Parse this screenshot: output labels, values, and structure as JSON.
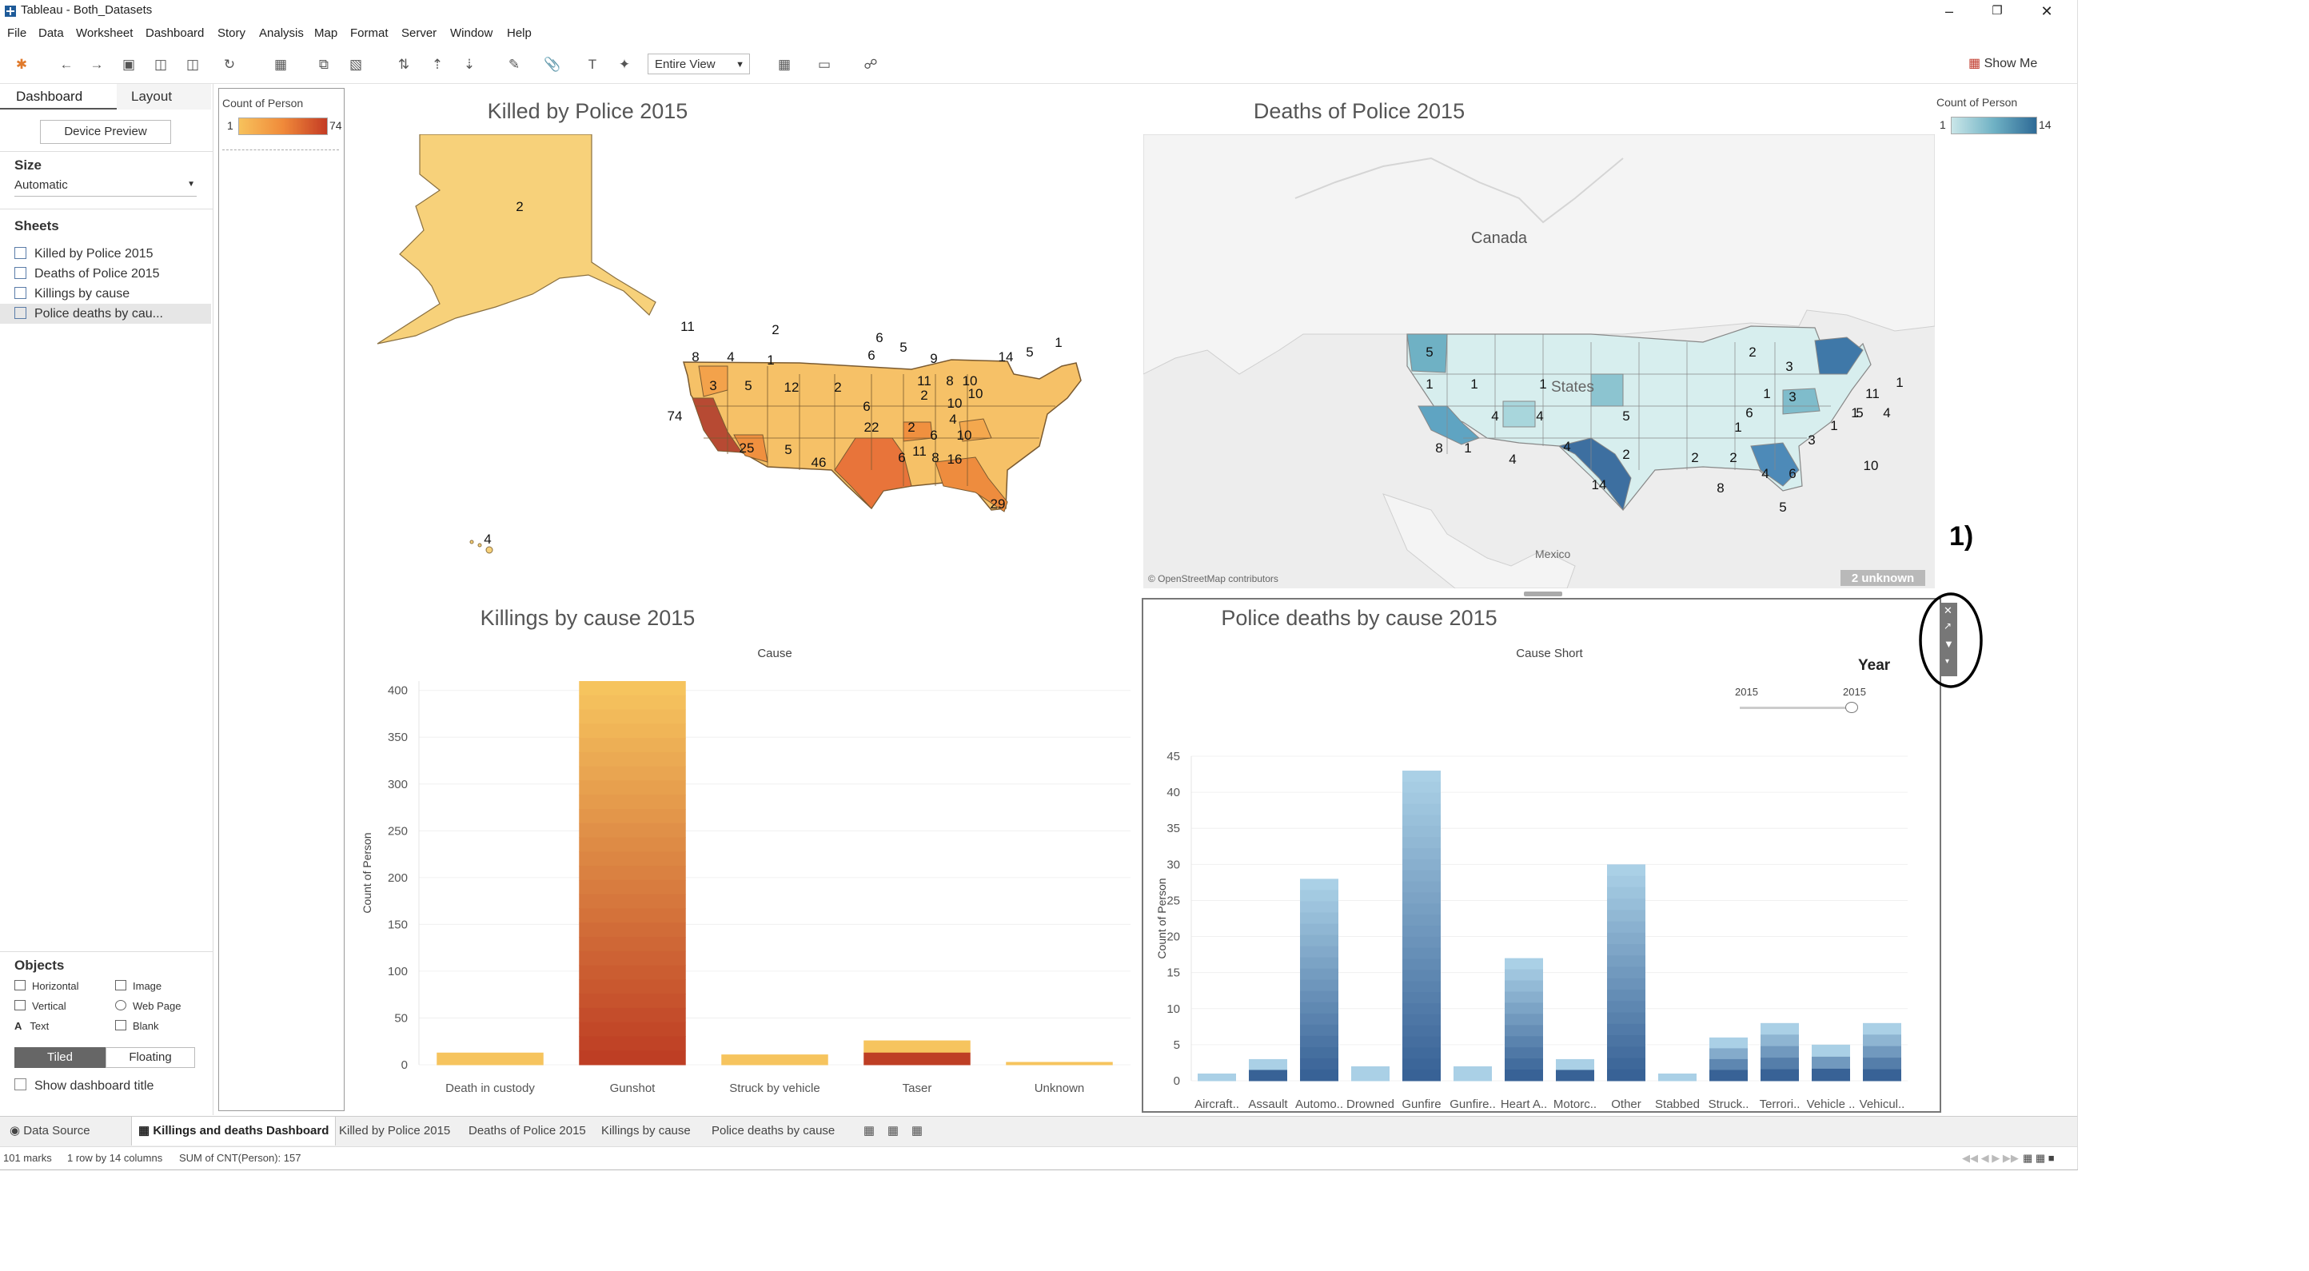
{
  "window": {
    "title": "Tableau - Both_Datasets"
  },
  "menu": [
    "File",
    "Data",
    "Worksheet",
    "Dashboard",
    "Story",
    "Analysis",
    "Map",
    "Format",
    "Server",
    "Window",
    "Help"
  ],
  "toolbar": {
    "fit": "Entire View",
    "show_me": "Show Me"
  },
  "left_pane": {
    "tabs": {
      "dashboard": "Dashboard",
      "layout": "Layout"
    },
    "device_preview": "Device Preview",
    "size_title": "Size",
    "size_value": "Automatic",
    "sheets_title": "Sheets",
    "sheets": [
      "Killed by Police 2015",
      "Deaths of Police 2015",
      "Killings by cause",
      "Police deaths by cau..."
    ],
    "objects_title": "Objects",
    "objects": [
      "Horizontal",
      "Image",
      "Vertical",
      "Web Page",
      "Text",
      "Blank"
    ],
    "tiled": "Tiled",
    "floating": "Floating",
    "show_title": "Show dashboard title"
  },
  "legend_orange": {
    "title": "Count of Person",
    "min": "1",
    "max": "74"
  },
  "legend_blue": {
    "title": "Count of Person",
    "min": "1",
    "max": "14"
  },
  "map_killed": {
    "title": "Killed by Police 2015",
    "labels": [
      "2",
      "11",
      "2",
      "6",
      "8",
      "4",
      "1",
      "5",
      "9",
      "6",
      "14",
      "5",
      "1",
      "2",
      "11",
      "8",
      "10",
      "3",
      "5",
      "12",
      "10",
      "2",
      "10",
      "6",
      "4",
      "74",
      "22",
      "2",
      "6",
      "10",
      "25",
      "5",
      "46",
      "11",
      "6",
      "8",
      "16",
      "29",
      "4"
    ]
  },
  "map_deaths": {
    "title": "Deaths of Police 2015",
    "labels": [
      "5",
      "2",
      "3",
      "1",
      "1",
      "1",
      "1",
      "3",
      "11",
      "1",
      "4",
      "4",
      "5",
      "6",
      "1",
      "8",
      "1",
      "4",
      "1",
      "5",
      "4",
      "2",
      "2",
      "2",
      "4",
      "10",
      "14",
      "6",
      "4",
      "8",
      "5",
      "1",
      "3"
    ],
    "place_canada": "Canada",
    "place_states": "States",
    "place_mexico": "Mexico",
    "attribution": "© OpenStreetMap contributors",
    "unknown": "2 unknown"
  },
  "annotation": "1)",
  "chart_data": [
    {
      "type": "bar",
      "title": "Killings by cause 2015",
      "header": "Cause",
      "ylabel": "Count of Person",
      "ylim": [
        0,
        410
      ],
      "yticks": [
        0,
        50,
        100,
        150,
        200,
        250,
        300,
        350,
        400
      ],
      "categories": [
        "Death in custody",
        "Gunshot",
        "Struck by vehicle",
        "Taser",
        "Unknown"
      ],
      "values": [
        13,
        410,
        11,
        26,
        3
      ]
    },
    {
      "type": "bar",
      "title": "Police deaths by cause 2015",
      "header": "Cause Short",
      "ylabel": "Count of Person",
      "ylim": [
        0,
        45
      ],
      "yticks": [
        0,
        5,
        10,
        15,
        20,
        25,
        30,
        35,
        40,
        45
      ],
      "categories": [
        "Aircraft..",
        "Assault",
        "Automo..",
        "Drowned",
        "Gunfire",
        "Gunfire..",
        "Heart A..",
        "Motorc..",
        "Other",
        "Stabbed",
        "Struck..",
        "Terrori..",
        "Vehicle ..",
        "Vehicul.."
      ],
      "values": [
        1,
        3,
        28,
        2,
        43,
        2,
        17,
        3,
        30,
        1,
        6,
        8,
        5,
        8
      ],
      "filter": {
        "title": "Year",
        "min": "2015",
        "max": "2015"
      }
    }
  ],
  "tabs": [
    "Data Source",
    "Killings and deaths Dashboard",
    "Killed by Police 2015",
    "Deaths of Police 2015",
    "Killings by cause",
    "Police deaths by cause"
  ],
  "status": {
    "marks": "101 marks",
    "rows": "1 row by 14 columns",
    "sum": "SUM of CNT(Person): 157"
  }
}
